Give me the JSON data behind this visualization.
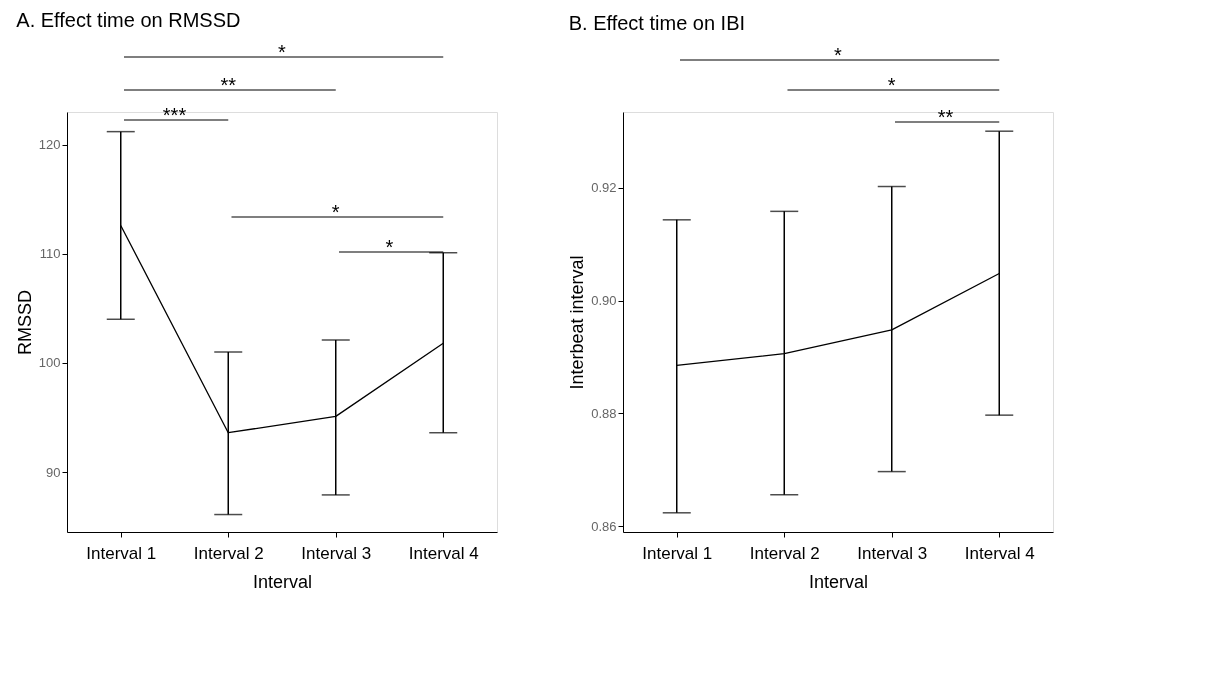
{
  "chart_data": [
    {
      "type": "line",
      "title": "A. Effect time on RMSSD",
      "xlabel": "Interval",
      "ylabel": "RMSSD",
      "categories": [
        "Interval 1",
        "Interval 2",
        "Interval 3",
        "Interval 4"
      ],
      "series": [
        {
          "color": "#000000",
          "values": [
            112.6,
            93.6,
            95.1,
            101.8
          ],
          "errors": [
            [
              104.0,
              121.2
            ],
            [
              86.1,
              101.0
            ],
            [
              87.9,
              102.1
            ],
            [
              93.6,
              110.1
            ]
          ]
        }
      ],
      "ylim": [
        84.5,
        123
      ],
      "yticks": [
        90,
        100,
        110,
        120
      ],
      "grid": false,
      "marker": "none",
      "line_style": "solid",
      "annotations": [
        "*",
        "**",
        "***",
        "*",
        "*"
      ]
    },
    {
      "type": "line",
      "title": "B. Effect time on IBI",
      "xlabel": "Interval",
      "ylabel": "Interbeat interval",
      "categories": [
        "Interval 1",
        "Interval 2",
        "Interval 3",
        "Interval 4"
      ],
      "series": [
        {
          "color": "#000000",
          "values": [
            0.8885,
            0.8906,
            0.8948,
            0.9048
          ],
          "errors": [
            [
              0.8624,
              0.9143
            ],
            [
              0.8656,
              0.9158
            ],
            [
              0.8697,
              0.9202
            ],
            [
              0.8797,
              0.93
            ]
          ]
        }
      ],
      "ylim": [
        0.859,
        0.9334
      ],
      "yticks": [
        {
          "value": 0.86,
          "label": "0.86"
        },
        {
          "value": 0.88,
          "label": "0.88"
        },
        {
          "value": 0.9,
          "label": "0.90"
        },
        {
          "value": 0.92,
          "label": "0.92"
        }
      ],
      "grid": false,
      "marker": "none",
      "line_style": "solid",
      "annotations": [
        "*",
        "*",
        "**"
      ]
    }
  ]
}
